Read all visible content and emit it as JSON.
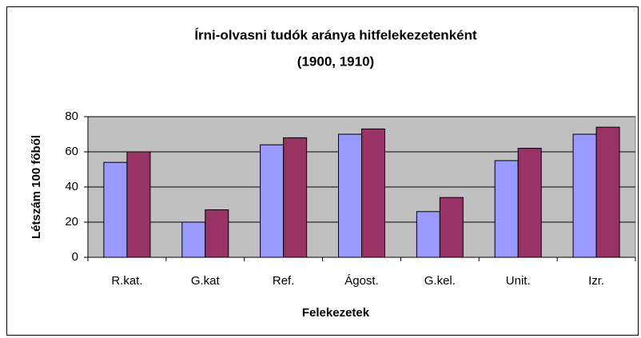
{
  "chart_data": {
    "type": "bar",
    "title": "Írni-olvasni tudók aránya hitfelekezetenként",
    "subtitle": "(1900, 1910)",
    "x_label": "Felekezetek",
    "y_label": "Létszám  100  főből",
    "categories": [
      "R.kat.",
      "G.kat",
      "Ref.",
      "Ágost.",
      "G.kel.",
      "Unit.",
      "Izr."
    ],
    "series": [
      {
        "color": "#9999ff",
        "values": [
          54,
          20,
          64,
          70,
          26,
          55,
          70
        ]
      },
      {
        "color": "#993366",
        "values": [
          60,
          27,
          68,
          73,
          34,
          62,
          74
        ]
      }
    ],
    "ylim": [
      0,
      80
    ],
    "yticks": [
      0,
      20,
      40,
      60,
      80
    ],
    "grid": true,
    "plot_background": "#c0c0c0"
  }
}
